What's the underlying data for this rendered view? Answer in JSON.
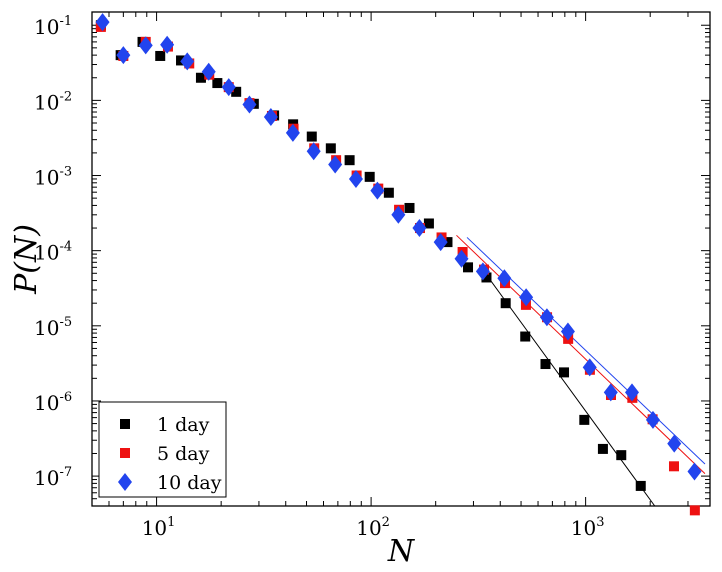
{
  "chart_data": {
    "type": "scatter",
    "title": "",
    "xlabel": "N",
    "ylabel": "P(N)",
    "xscale": "log",
    "yscale": "log",
    "xlim": [
      5.0,
      3800
    ],
    "ylim": [
      4e-08,
      0.15
    ],
    "x_ticks": [
      {
        "value": 10,
        "label_base": "10",
        "label_exp": "1"
      },
      {
        "value": 100,
        "label_base": "10",
        "label_exp": "2"
      },
      {
        "value": 1000,
        "label_base": "10",
        "label_exp": "3"
      }
    ],
    "y_ticks": [
      {
        "value": 1e-07,
        "label_base": "10",
        "label_exp": "-7"
      },
      {
        "value": 1e-06,
        "label_base": "10",
        "label_exp": "-6"
      },
      {
        "value": 1e-05,
        "label_base": "10",
        "label_exp": "-5"
      },
      {
        "value": 0.0001,
        "label_base": "10",
        "label_exp": "-4"
      },
      {
        "value": 0.001,
        "label_base": "10",
        "label_exp": "-3"
      },
      {
        "value": 0.01,
        "label_base": "10",
        "label_exp": "-2"
      },
      {
        "value": 0.1,
        "label_base": "10",
        "label_exp": "-1"
      }
    ],
    "legend_position": "bottom-left",
    "series": [
      {
        "name": "1 day",
        "marker": "square",
        "color": "#000000",
        "points": [
          [
            5.5,
            0.1
          ],
          [
            6.8,
            0.04
          ],
          [
            8.6,
            0.06
          ],
          [
            10.4,
            0.039
          ],
          [
            13.0,
            0.034
          ],
          [
            16.1,
            0.02
          ],
          [
            19.2,
            0.017
          ],
          [
            23.5,
            0.013
          ],
          [
            28.4,
            0.009
          ],
          [
            35.3,
            0.0063
          ],
          [
            43.3,
            0.0048
          ],
          [
            52.9,
            0.0033
          ],
          [
            64.9,
            0.0023
          ],
          [
            79.4,
            0.0016
          ],
          [
            98.5,
            0.00096
          ],
          [
            121,
            0.00059
          ],
          [
            151,
            0.00037
          ],
          [
            186,
            0.00023
          ],
          [
            227,
            0.00013
          ],
          [
            283,
            6e-05
          ],
          [
            345,
            4.4e-05
          ],
          [
            424,
            2e-05
          ],
          [
            523,
            7.2e-06
          ],
          [
            650,
            3.1e-06
          ],
          [
            793,
            2.4e-06
          ],
          [
            986,
            5.6e-07
          ],
          [
            1204,
            2.3e-07
          ],
          [
            1466,
            1.9e-07
          ],
          [
            1807,
            7.4e-08
          ]
        ]
      },
      {
        "name": "5 day",
        "marker": "square",
        "color": "#ee1111",
        "points": [
          [
            5.5,
            0.095
          ],
          [
            7.0,
            0.039
          ],
          [
            8.9,
            0.06
          ],
          [
            11.3,
            0.052
          ],
          [
            14.2,
            0.031
          ],
          [
            17.6,
            0.022
          ],
          [
            21.7,
            0.015
          ],
          [
            27.1,
            0.0092
          ],
          [
            34.5,
            0.0062
          ],
          [
            43.5,
            0.0042
          ],
          [
            54.3,
            0.0023
          ],
          [
            68.7,
            0.0016
          ],
          [
            85.6,
            0.001
          ],
          [
            108,
            0.00067
          ],
          [
            135,
            0.00035
          ],
          [
            169,
            0.0002
          ],
          [
            213,
            0.00015
          ],
          [
            267,
            9.6e-05
          ],
          [
            336,
            5.6e-05
          ],
          [
            421,
            3.7e-05
          ],
          [
            527,
            1.9e-05
          ],
          [
            661,
            1.3e-05
          ],
          [
            829,
            6.7e-06
          ],
          [
            1047,
            2.6e-06
          ],
          [
            1313,
            1.2e-06
          ],
          [
            1651,
            1.1e-06
          ],
          [
            2052,
            5.7e-07
          ],
          [
            2582,
            1.35e-07
          ],
          [
            3230,
            3.5e-08
          ]
        ]
      },
      {
        "name": "10 day",
        "marker": "diamond",
        "color": "#2244ee",
        "points": [
          [
            5.6,
            0.11
          ],
          [
            7.0,
            0.04
          ],
          [
            8.9,
            0.054
          ],
          [
            11.2,
            0.055
          ],
          [
            13.9,
            0.033
          ],
          [
            17.5,
            0.024
          ],
          [
            21.7,
            0.015
          ],
          [
            27.1,
            0.0088
          ],
          [
            34.1,
            0.006
          ],
          [
            43.2,
            0.0037
          ],
          [
            54.0,
            0.0021
          ],
          [
            68.0,
            0.0014
          ],
          [
            85.0,
            0.0009
          ],
          [
            107,
            0.00063
          ],
          [
            134,
            0.0003
          ],
          [
            168,
            0.0002
          ],
          [
            211,
            0.00013
          ],
          [
            264,
            7.8e-05
          ],
          [
            332,
            5.3e-05
          ],
          [
            418,
            4.3e-05
          ],
          [
            528,
            2.4e-05
          ],
          [
            660,
            1.3e-05
          ],
          [
            827,
            8.4e-06
          ],
          [
            1045,
            2.8e-06
          ],
          [
            1310,
            1.3e-06
          ],
          [
            1645,
            1.3e-06
          ],
          [
            2060,
            5.6e-07
          ],
          [
            2589,
            2.7e-07
          ],
          [
            3217,
            1.15e-07
          ]
        ]
      }
    ],
    "fit_lines": [
      {
        "series": "1 day",
        "color": "#000000",
        "x": [
          320,
          2100
        ],
        "y": [
          6.4e-05,
          4e-08
        ]
      },
      {
        "series": "5 day",
        "color": "#ee1111",
        "x": [
          250,
          3600
        ],
        "y": [
          0.00016,
          1.08e-07
        ]
      },
      {
        "series": "10 day",
        "color": "#2244ee",
        "x": [
          280,
          3600
        ],
        "y": [
          0.00015,
          1.45e-07
        ]
      }
    ]
  }
}
